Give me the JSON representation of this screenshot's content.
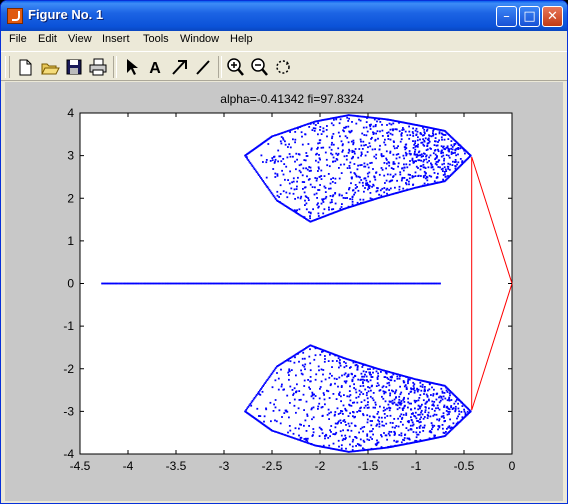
{
  "window": {
    "title": "Figure No. 1"
  },
  "title_buttons": {
    "minimize": "–",
    "maximize": "□",
    "close": "✕"
  },
  "menu": {
    "items": [
      "File",
      "Edit",
      "View",
      "Insert",
      "Tools",
      "Window",
      "Help"
    ]
  },
  "toolbar": {
    "icons": [
      "new-file-icon",
      "open-folder-icon",
      "save-icon",
      "print-icon",
      "select-arrow-icon",
      "insert-text-icon",
      "insert-arrow-icon",
      "insert-line-icon",
      "zoom-in-icon",
      "zoom-out-icon",
      "rotate-3d-icon"
    ]
  },
  "colors": {
    "scatter": "#0000ff",
    "lines": "#ff0000",
    "figure_bg": "#c8c8c8",
    "axes_bg": "#ffffff"
  },
  "chart_data": {
    "type": "scatter",
    "title": "alpha=-0.41342     fi=97.8324",
    "xlabel": "",
    "ylabel": "",
    "xlim": [
      -4.5,
      0
    ],
    "ylim": [
      -4,
      4
    ],
    "grid": false,
    "xticks": [
      -4.5,
      -4,
      -3.5,
      -3,
      -2.5,
      -2,
      -1.5,
      -1,
      -0.5,
      0
    ],
    "yticks": [
      -4,
      -3,
      -2,
      -1,
      0,
      1,
      2,
      3,
      4
    ],
    "xtick_labels": [
      "-4.5",
      "-4",
      "-3.5",
      "-3",
      "-2.5",
      "-2",
      "-1.5",
      "-1",
      "-0.5",
      "0"
    ],
    "ytick_labels": [
      "-4",
      "-3",
      "-2",
      "-1",
      "0",
      "1",
      "2",
      "3",
      "4"
    ],
    "series": [
      {
        "kind": "points",
        "description": "real-axis point line",
        "x_range": [
          -4.27,
          -0.75
        ],
        "y": 0
      },
      {
        "kind": "region",
        "description": "upper lobe scatter outline",
        "outline": [
          [
            -2.78,
            3.0
          ],
          [
            -2.5,
            3.45
          ],
          [
            -2.05,
            3.8
          ],
          [
            -1.7,
            3.95
          ],
          [
            -1.3,
            3.85
          ],
          [
            -1.0,
            3.72
          ],
          [
            -0.7,
            3.58
          ],
          [
            -0.43,
            3.0
          ],
          [
            -0.7,
            2.4
          ],
          [
            -1.0,
            2.25
          ],
          [
            -1.4,
            2.0
          ],
          [
            -1.75,
            1.75
          ],
          [
            -2.1,
            1.45
          ],
          [
            -2.45,
            1.95
          ],
          [
            -2.78,
            3.0
          ]
        ]
      },
      {
        "kind": "region",
        "description": "lower lobe scatter outline (mirror)",
        "outline": [
          [
            -2.78,
            -3.0
          ],
          [
            -2.5,
            -3.45
          ],
          [
            -2.05,
            -3.8
          ],
          [
            -1.7,
            -3.95
          ],
          [
            -1.3,
            -3.85
          ],
          [
            -1.0,
            -3.72
          ],
          [
            -0.7,
            -3.58
          ],
          [
            -0.43,
            -3.0
          ],
          [
            -0.7,
            -2.4
          ],
          [
            -1.0,
            -2.25
          ],
          [
            -1.4,
            -2.0
          ],
          [
            -1.75,
            -1.75
          ],
          [
            -2.1,
            -1.45
          ],
          [
            -2.45,
            -1.95
          ],
          [
            -2.78,
            -3.0
          ]
        ]
      },
      {
        "kind": "line",
        "description": "red connecting lines",
        "points": [
          [
            -0.42,
            2.97
          ],
          [
            -0.42,
            -2.97
          ],
          [
            0,
            0
          ],
          [
            -0.42,
            2.97
          ]
        ]
      }
    ]
  }
}
